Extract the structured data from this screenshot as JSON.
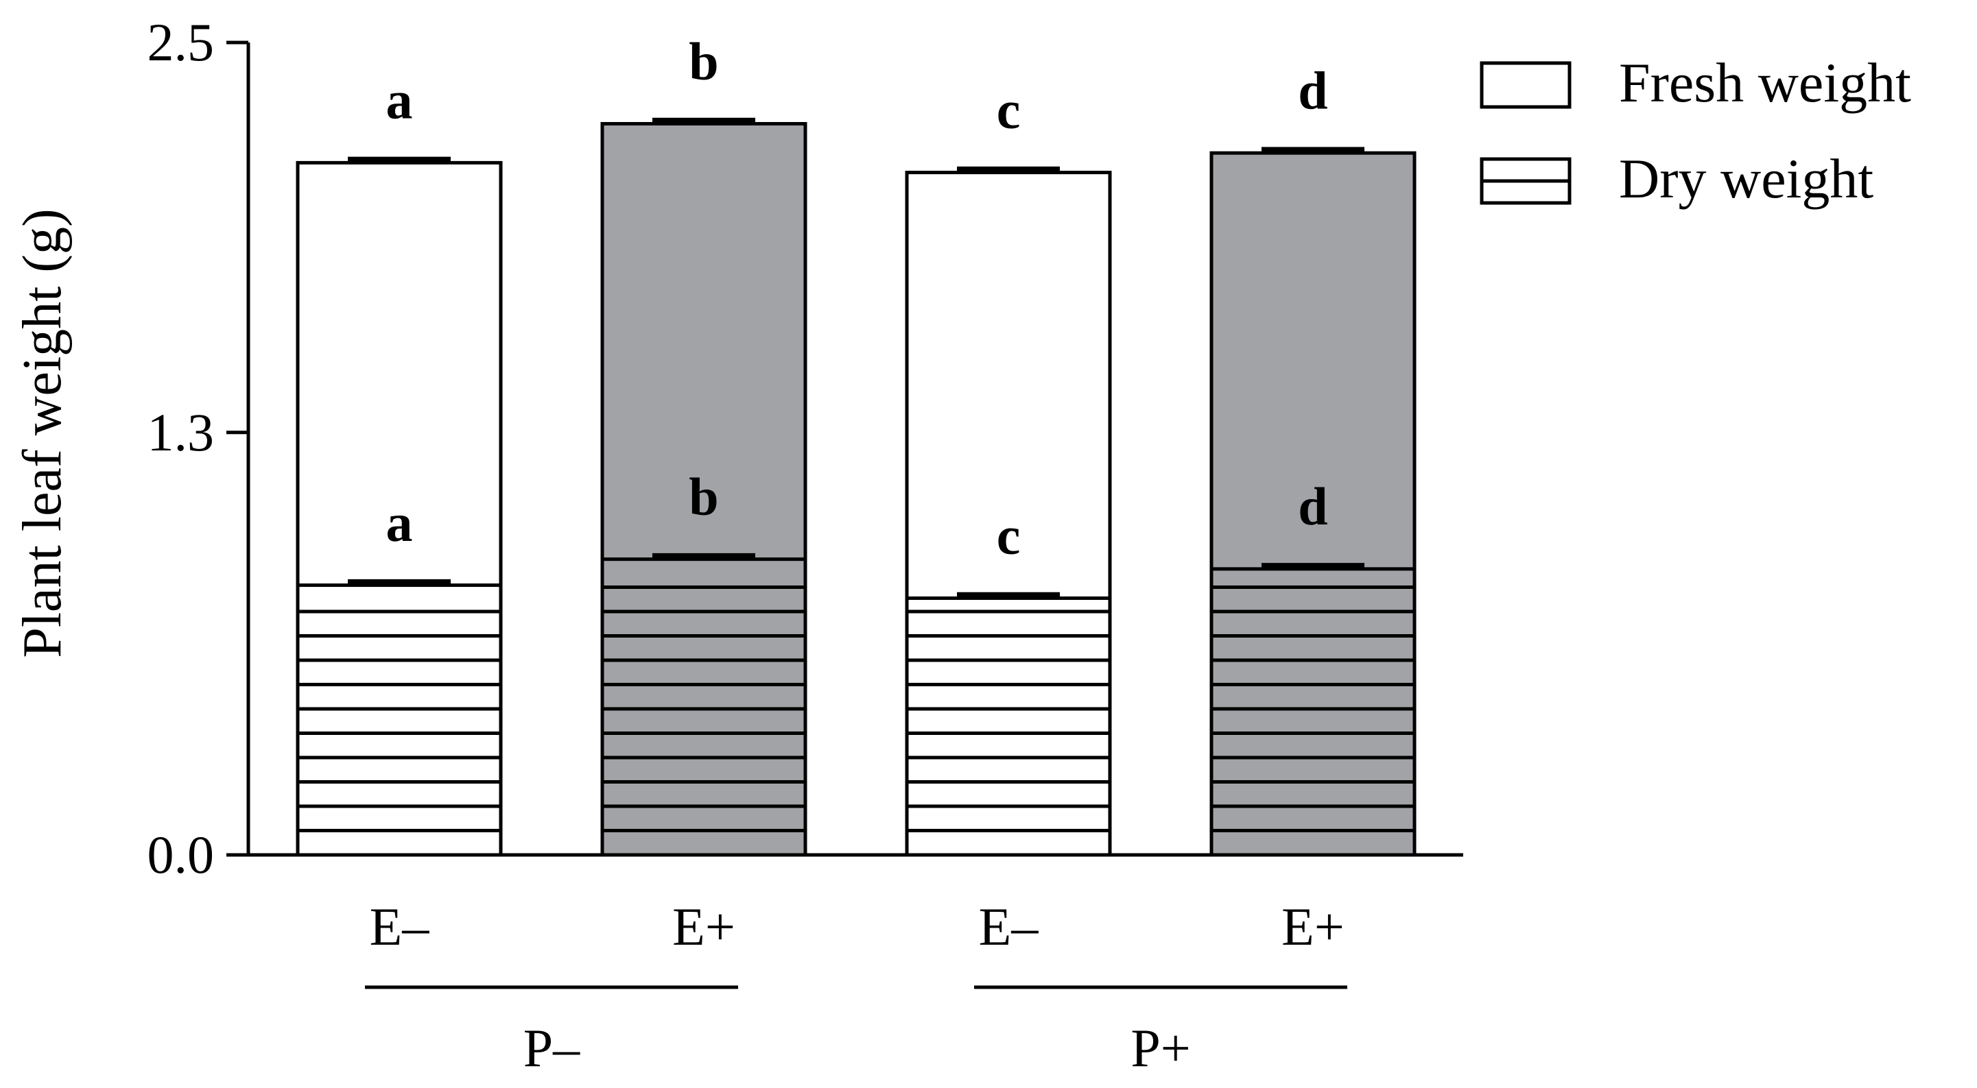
{
  "chart_data": {
    "type": "bar",
    "stacking": "overlay",
    "ylabel": "Plant leaf weight (g)",
    "ylim": [
      0,
      2.5
    ],
    "yticks": [
      "0.0",
      "1.3",
      "2.5"
    ],
    "categories": [
      "E–",
      "E+",
      "E–",
      "E+"
    ],
    "groups": [
      {
        "label": "P–",
        "categories": [
          0,
          1
        ]
      },
      {
        "label": "P+",
        "categories": [
          2,
          3
        ]
      }
    ],
    "series": [
      {
        "name": "Fresh weight",
        "values": [
          2.13,
          2.25,
          2.1,
          2.16
        ],
        "errors": [
          0.01,
          0.01,
          0.01,
          0.01
        ],
        "letters": [
          "a",
          "b",
          "c",
          "d"
        ]
      },
      {
        "name": "Dry weight",
        "values": [
          0.83,
          0.91,
          0.79,
          0.88
        ],
        "errors": [
          0.01,
          0.01,
          0.01,
          0.01
        ],
        "letters": [
          "a",
          "b",
          "c",
          "d"
        ]
      }
    ],
    "colors": {
      "E–": "#ffffff",
      "E+": "#a2a3a7",
      "outline": "#000000"
    },
    "legend": {
      "placement": "top-right",
      "entries": [
        {
          "label": "Fresh weight",
          "pattern": "blank"
        },
        {
          "label": "Dry weight",
          "pattern": "horizontal-lines"
        }
      ]
    },
    "grid": false
  }
}
